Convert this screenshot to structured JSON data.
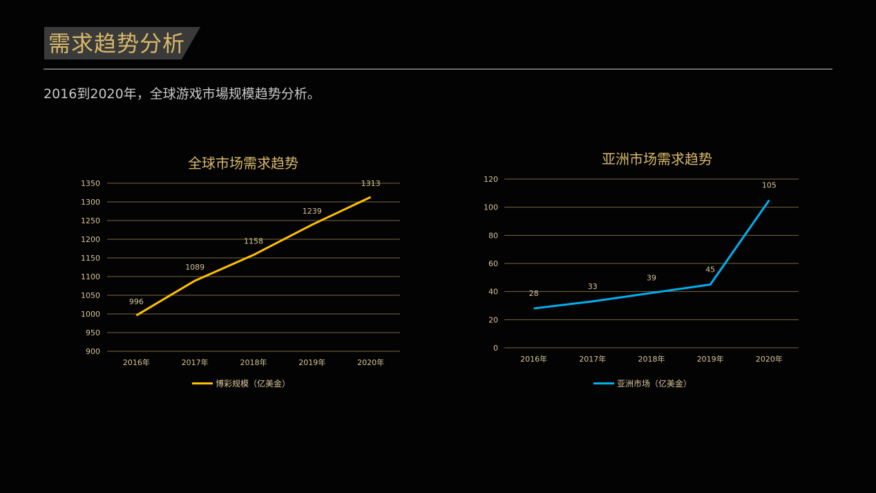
{
  "header": {
    "title": "需求趋势分析",
    "subtitle": "2016到2020年，全球游戏市場规模趋势分析。"
  },
  "colors": {
    "gold": "#d8b86a",
    "line_gold": "#ffc000",
    "line_blue": "#00b0f0",
    "grid": "#7a6a40"
  },
  "chart_data": [
    {
      "type": "line",
      "title": "全球市场需求趋势",
      "categories": [
        "2016年",
        "2017年",
        "2018年",
        "2019年",
        "2020年"
      ],
      "series": [
        {
          "name": "博彩规模（亿美金）",
          "values": [
            996,
            1089,
            1158,
            1239,
            1313
          ],
          "color": "#ffc000"
        }
      ],
      "ylim": [
        900,
        1350
      ],
      "yticks": [
        900,
        950,
        1000,
        1050,
        1100,
        1150,
        1200,
        1250,
        1300,
        1350
      ],
      "grid": true,
      "legend": "bottom"
    },
    {
      "type": "line",
      "title": "亚洲市场需求趋势",
      "categories": [
        "2016年",
        "2017年",
        "2018年",
        "2019年",
        "2020年"
      ],
      "series": [
        {
          "name": "亚洲市场（亿美金）",
          "values": [
            28,
            33,
            39,
            45,
            105
          ],
          "color": "#00b0f0"
        }
      ],
      "ylim": [
        0,
        120
      ],
      "yticks": [
        0,
        20,
        40,
        60,
        80,
        100,
        120
      ],
      "grid": true,
      "legend": "bottom"
    }
  ]
}
